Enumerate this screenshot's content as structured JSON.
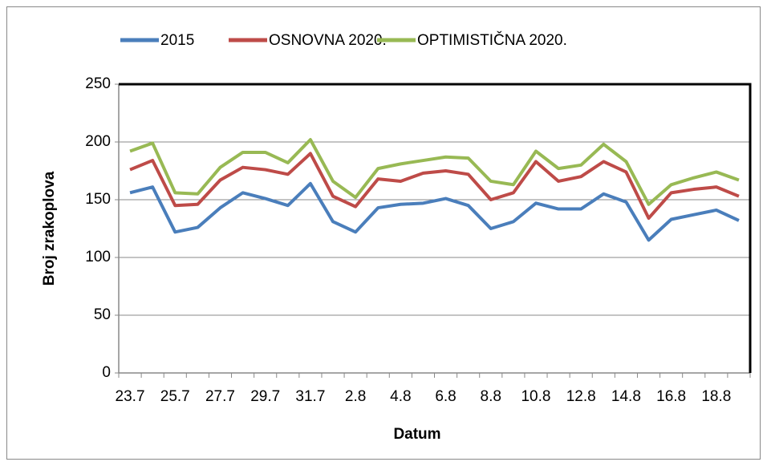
{
  "chart_data": {
    "type": "line",
    "x_label": "Datum",
    "y_label": "Broj zrakoplova",
    "categories": [
      "23.7",
      null,
      "25.7",
      null,
      "27.7",
      null,
      "29.7",
      null,
      "31.7",
      null,
      "2.8",
      null,
      "4.8",
      null,
      "6.8",
      null,
      "8.8",
      null,
      "10.8",
      null,
      "12.8",
      null,
      "14.8",
      null,
      "16.8",
      null,
      "18.8",
      null
    ],
    "series": [
      {
        "name": "2015",
        "color": "#4a7ebb",
        "values": [
          156,
          161,
          122,
          126,
          143,
          156,
          151,
          145,
          164,
          131,
          122,
          143,
          146,
          147,
          151,
          145,
          125,
          131,
          147,
          142,
          142,
          155,
          148,
          115,
          133,
          137,
          141,
          132
        ]
      },
      {
        "name": "OSNOVNA 2020.",
        "color": "#be4b48",
        "values": [
          176,
          184,
          145,
          146,
          167,
          178,
          176,
          172,
          190,
          153,
          144,
          168,
          166,
          173,
          175,
          172,
          150,
          156,
          183,
          166,
          170,
          183,
          174,
          134,
          156,
          159,
          161,
          153
        ]
      },
      {
        "name": "OPTIMISTIČNA 2020.",
        "color": "#98b954",
        "values": [
          192,
          199,
          156,
          155,
          178,
          191,
          191,
          182,
          202,
          166,
          152,
          177,
          181,
          184,
          187,
          186,
          166,
          163,
          192,
          177,
          180,
          198,
          183,
          146,
          163,
          169,
          174,
          167
        ]
      }
    ],
    "ylim": [
      0,
      250
    ],
    "yticks": [
      0,
      50,
      100,
      150,
      200,
      250
    ],
    "grid": true,
    "legend": "top"
  }
}
